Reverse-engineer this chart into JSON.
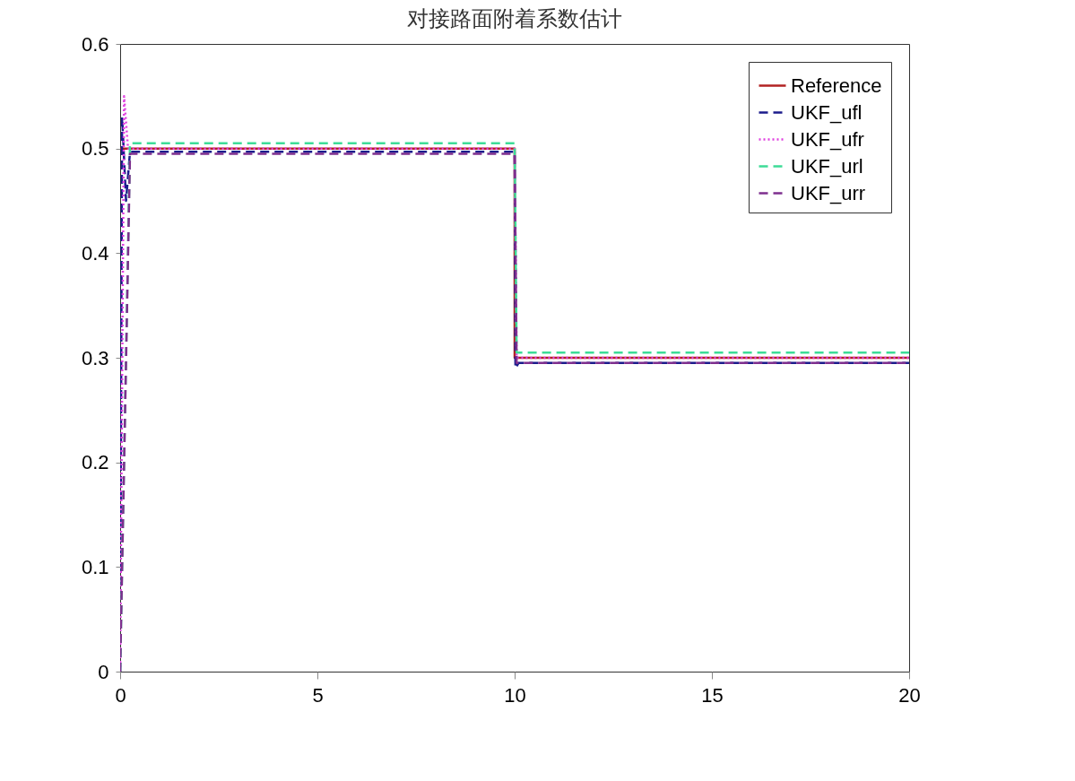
{
  "chart_data": {
    "type": "line",
    "title": "对接路面附着系数估计",
    "xlim": [
      0,
      20
    ],
    "xticks": [
      0,
      5,
      10,
      15,
      20
    ],
    "ylim": [
      0,
      0.6
    ],
    "yticks": [
      0,
      0.1,
      0.2,
      0.3,
      0.4,
      0.5,
      0.6
    ],
    "grid": false,
    "legend": "top right",
    "series": [
      {
        "name": "Reference",
        "color": "#b22222",
        "line_style": "solid",
        "x": [
          0,
          10,
          10,
          20
        ],
        "values": [
          0.5,
          0.5,
          0.3,
          0.3
        ]
      },
      {
        "name": "UKF_ufl",
        "color": "#1c1c8c",
        "line_style": "dashed",
        "x": [
          0,
          0.05,
          0.15,
          0.25,
          10,
          10.02,
          10.1,
          20
        ],
        "values": [
          0,
          0.53,
          0.45,
          0.497,
          0.497,
          0.29,
          0.295,
          0.295
        ]
      },
      {
        "name": "UKF_ufr",
        "color": "#e040e0",
        "line_style": "dotted",
        "x": [
          0,
          0.1,
          0.2,
          0.3,
          10,
          10.05,
          20
        ],
        "values": [
          0,
          0.55,
          0.5,
          0.5,
          0.5,
          0.3,
          0.3
        ]
      },
      {
        "name": "UKF_url",
        "color": "#3ddc97",
        "line_style": "dashed",
        "x": [
          0,
          0.25,
          10,
          10.05,
          20
        ],
        "values": [
          0,
          0.505,
          0.505,
          0.305,
          0.305
        ]
      },
      {
        "name": "UKF_urr",
        "color": "#7e2f8e",
        "line_style": "dashed",
        "x": [
          0,
          0.25,
          10,
          10.05,
          20
        ],
        "values": [
          0,
          0.495,
          0.495,
          0.295,
          0.295
        ]
      }
    ]
  }
}
